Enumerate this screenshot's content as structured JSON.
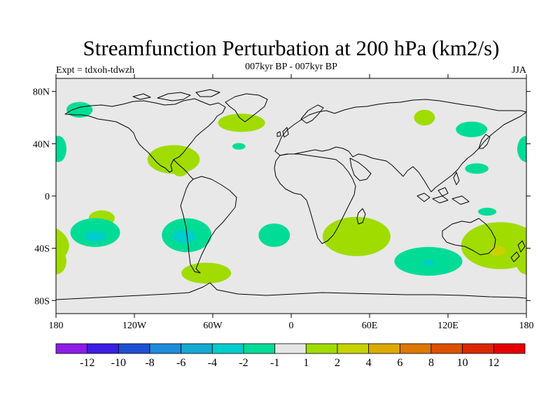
{
  "title": "Streamfunction Perturbation at 200 hPa (km2/s)",
  "experiment": "Expt = tdxoh-tdwzh",
  "period": "007kyr BP - 007kyr BP",
  "season": "JJA",
  "map": {
    "projection": "cylindrical equidistant",
    "lon_range": [
      -180,
      180
    ],
    "lat_range": [
      -90,
      90
    ],
    "x_ticks": [
      "180",
      "120W",
      "60W",
      "0",
      "60E",
      "120E",
      "180"
    ],
    "y_ticks": [
      "80N",
      "40N",
      "0",
      "40S",
      "80S"
    ],
    "land_color": "#e8e8e8",
    "coast_color": "#000000"
  },
  "colorbar": {
    "labels": [
      "-12",
      "-10",
      "-8",
      "-6",
      "-4",
      "-2",
      "-1",
      "1",
      "2",
      "4",
      "6",
      "8",
      "10",
      "12"
    ],
    "colors": [
      "#8c1ee6",
      "#3c1ee6",
      "#1e50d2",
      "#1e8cdc",
      "#14aad2",
      "#00cdcd",
      "#00dc96",
      "#e6e6e6",
      "#a0dc00",
      "#c8d200",
      "#dcaa00",
      "#dc7800",
      "#dc5000",
      "#dc2800",
      "#e60000"
    ]
  },
  "anomalies": [
    {
      "lon": -162,
      "lat": 66,
      "rx": 10,
      "ry": 6,
      "color": "#00dc96"
    },
    {
      "lon": -178,
      "lat": 36,
      "rx": 6,
      "ry": 10,
      "color": "#00dc96"
    },
    {
      "lon": -90,
      "lat": 28,
      "rx": 20,
      "ry": 11,
      "color": "#a0dc00"
    },
    {
      "lon": -85,
      "lat": 20,
      "rx": 6,
      "ry": 5,
      "color": "#a0dc00"
    },
    {
      "lon": -38,
      "lat": 56,
      "rx": 18,
      "ry": 7,
      "color": "#a0dc00"
    },
    {
      "lon": -40,
      "lat": 38,
      "rx": 5,
      "ry": 2.5,
      "color": "#00dc96"
    },
    {
      "lon": 102,
      "lat": 60,
      "rx": 8,
      "ry": 6,
      "color": "#a0dc00"
    },
    {
      "lon": 138,
      "lat": 51,
      "rx": 12,
      "ry": 6,
      "color": "#00dc96"
    },
    {
      "lon": 180,
      "lat": 36,
      "rx": 7,
      "ry": 10,
      "color": "#00dc96"
    },
    {
      "lon": 142,
      "lat": 21,
      "rx": 9,
      "ry": 4,
      "color": "#00dc96"
    },
    {
      "lon": 150,
      "lat": -12,
      "rx": 7,
      "ry": 3,
      "color": "#00dc96"
    },
    {
      "lon": -145,
      "lat": -17,
      "rx": 10,
      "ry": 6,
      "color": "#a0dc00"
    },
    {
      "lon": -150,
      "lat": -28,
      "rx": 19,
      "ry": 11,
      "color": "#00dc96"
    },
    {
      "lon": -150,
      "lat": -31,
      "rx": 8,
      "ry": 4,
      "color": "#00cdcd"
    },
    {
      "lon": -80,
      "lat": -30,
      "rx": 19,
      "ry": 13,
      "color": "#00dc96"
    },
    {
      "lon": -82,
      "lat": -31,
      "rx": 9,
      "ry": 5,
      "color": "#00cdcd"
    },
    {
      "lon": -180,
      "lat": -50,
      "rx": 8,
      "ry": 10,
      "color": "#a0dc00"
    },
    {
      "lon": -65,
      "lat": -59,
      "rx": 19,
      "ry": 8,
      "color": "#a0dc00"
    },
    {
      "lon": -13,
      "lat": -30,
      "rx": 12,
      "ry": 9,
      "color": "#00dc96"
    },
    {
      "lon": 50,
      "lat": -31,
      "rx": 26,
      "ry": 15,
      "color": "#a0dc00"
    },
    {
      "lon": 105,
      "lat": -50,
      "rx": 26,
      "ry": 11,
      "color": "#00dc96"
    },
    {
      "lon": 105,
      "lat": -51,
      "rx": 5,
      "ry": 2,
      "color": "#00cdcd"
    },
    {
      "lon": 160,
      "lat": -38,
      "rx": 30,
      "ry": 18,
      "color": "#a0dc00"
    },
    {
      "lon": 158,
      "lat": -42,
      "rx": 6,
      "ry": 4,
      "color": "#c8d200"
    }
  ]
}
